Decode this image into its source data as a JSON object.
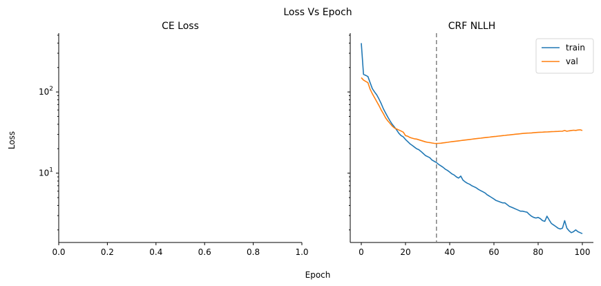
{
  "figure": {
    "suptitle": "Loss Vs Epoch",
    "xlabel": "Epoch",
    "ylabel": "Loss"
  },
  "chart_data": [
    {
      "type": "line",
      "title": "CE Loss",
      "xlim": [
        0.0,
        1.0
      ],
      "ylim": [
        1.4,
        530
      ],
      "yscale": "log",
      "xticks": [
        "0.0",
        "0.2",
        "0.4",
        "0.6",
        "0.8",
        "1.0"
      ],
      "series": []
    },
    {
      "type": "line",
      "title": "CRF NLLH",
      "xlim": [
        -5,
        105
      ],
      "ylim": [
        1.4,
        530
      ],
      "yscale": "log",
      "shared_y_with": "CE Loss",
      "xticks": [
        "0",
        "20",
        "40",
        "60",
        "80",
        "100"
      ],
      "legend": "top-right",
      "vline": {
        "x": 34,
        "style": "dashed",
        "color": "#808080"
      },
      "series": [
        {
          "name": "train",
          "color": "#1f77b4",
          "x": [
            0,
            1,
            2,
            3,
            4,
            5,
            6,
            7,
            8,
            9,
            10,
            11,
            12,
            13,
            14,
            15,
            16,
            17,
            18,
            19,
            20,
            21,
            22,
            23,
            24,
            25,
            26,
            27,
            28,
            29,
            30,
            31,
            32,
            33,
            34,
            35,
            36,
            37,
            38,
            39,
            40,
            41,
            42,
            43,
            44,
            45,
            46,
            47,
            48,
            49,
            50,
            51,
            52,
            53,
            54,
            55,
            56,
            57,
            58,
            59,
            60,
            61,
            62,
            63,
            64,
            65,
            66,
            67,
            68,
            69,
            70,
            71,
            72,
            73,
            74,
            75,
            76,
            77,
            78,
            79,
            80,
            81,
            82,
            83,
            84,
            85,
            86,
            87,
            88,
            89,
            90,
            91,
            92,
            93,
            94,
            95,
            96,
            97,
            98,
            99,
            100
          ],
          "y": [
            400,
            165,
            160,
            155,
            130,
            110,
            100,
            92,
            82,
            72,
            62,
            55,
            49,
            44,
            40,
            37,
            34,
            31,
            29,
            28,
            26,
            24.5,
            23,
            22,
            21,
            20,
            19.5,
            18.5,
            17.5,
            16.5,
            16,
            15.5,
            14.5,
            14,
            13.5,
            12.8,
            12.3,
            11.8,
            11.2,
            10.8,
            10.3,
            9.8,
            9.5,
            9,
            8.7,
            9.2,
            8.2,
            7.8,
            7.5,
            7.3,
            7,
            6.8,
            6.6,
            6.3,
            6.1,
            5.9,
            5.7,
            5.4,
            5.2,
            5.0,
            4.8,
            4.6,
            4.5,
            4.4,
            4.3,
            4.3,
            4.1,
            3.9,
            3.8,
            3.7,
            3.6,
            3.5,
            3.4,
            3.4,
            3.35,
            3.3,
            3.1,
            2.95,
            2.85,
            2.8,
            2.85,
            2.75,
            2.6,
            2.55,
            2.95,
            2.65,
            2.4,
            2.3,
            2.2,
            2.1,
            2.05,
            2.1,
            2.6,
            2.1,
            1.95,
            1.85,
            1.9,
            2.0,
            1.9,
            1.85,
            1.8
          ]
        },
        {
          "name": "val",
          "color": "#ff7f0e",
          "x": [
            0,
            1,
            2,
            3,
            4,
            5,
            6,
            7,
            8,
            9,
            10,
            11,
            12,
            13,
            14,
            15,
            16,
            17,
            18,
            19,
            20,
            21,
            22,
            23,
            24,
            25,
            26,
            27,
            28,
            29,
            30,
            31,
            32,
            33,
            34,
            35,
            36,
            37,
            38,
            39,
            40,
            41,
            42,
            43,
            44,
            45,
            46,
            47,
            48,
            49,
            50,
            51,
            52,
            53,
            54,
            55,
            56,
            57,
            58,
            59,
            60,
            61,
            62,
            63,
            64,
            65,
            66,
            67,
            68,
            69,
            70,
            71,
            72,
            73,
            74,
            75,
            76,
            77,
            78,
            79,
            80,
            81,
            82,
            83,
            84,
            85,
            86,
            87,
            88,
            89,
            90,
            91,
            92,
            93,
            94,
            95,
            96,
            97,
            98,
            99,
            100
          ],
          "y": [
            150,
            140,
            135,
            130,
            108,
            95,
            85,
            76,
            68,
            60,
            54,
            48,
            44,
            41,
            38,
            36,
            35,
            34,
            33,
            32,
            29,
            28.5,
            27.5,
            27,
            26.5,
            26.3,
            25.8,
            25.3,
            24.8,
            24.3,
            24,
            23.8,
            23.5,
            23.3,
            23.2,
            23.3,
            23.4,
            23.6,
            23.8,
            24,
            24.2,
            24.4,
            24.6,
            24.8,
            25,
            25.2,
            25.4,
            25.6,
            25.8,
            26,
            26.2,
            26.4,
            26.6,
            26.8,
            27,
            27.2,
            27.4,
            27.6,
            27.8,
            28,
            28.2,
            28.4,
            28.6,
            28.8,
            29,
            29.2,
            29.4,
            29.6,
            29.8,
            30,
            30.2,
            30.4,
            30.6,
            30.8,
            31,
            31.1,
            31.2,
            31.3,
            31.5,
            31.7,
            31.8,
            31.9,
            32,
            32.1,
            32.2,
            32.3,
            32.4,
            32.5,
            32.6,
            32.7,
            32.8,
            32.9,
            33.5,
            32.8,
            33.2,
            33.5,
            33.8,
            33.6,
            34,
            34.2,
            33.5
          ]
        }
      ]
    }
  ]
}
